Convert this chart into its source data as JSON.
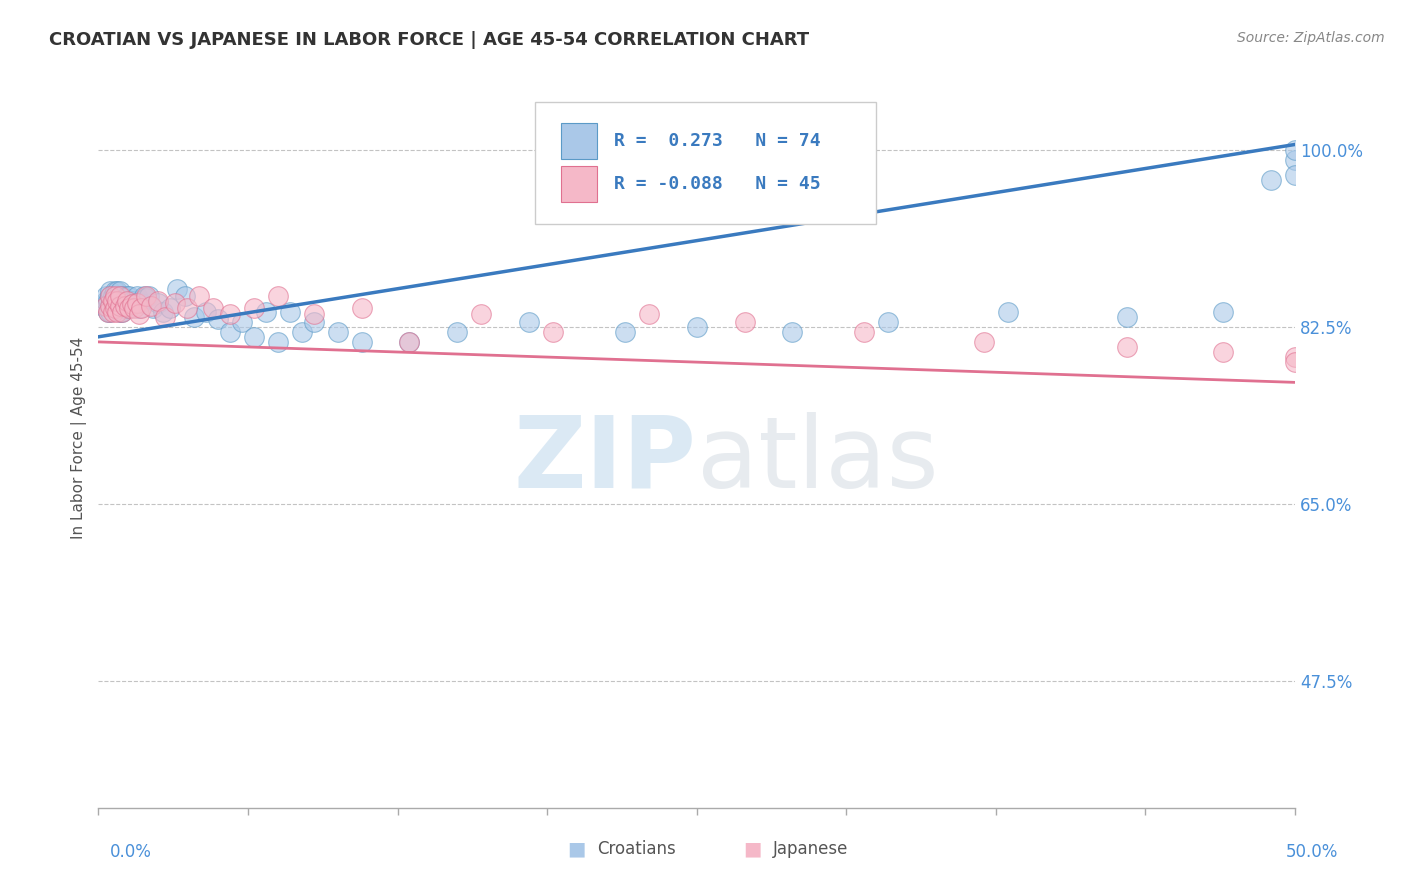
{
  "title": "CROATIAN VS JAPANESE IN LABOR FORCE | AGE 45-54 CORRELATION CHART",
  "source": "Source: ZipAtlas.com",
  "ylabel": "In Labor Force | Age 45-54",
  "ytick_labels": [
    "47.5%",
    "65.0%",
    "82.5%",
    "100.0%"
  ],
  "ytick_values": [
    0.475,
    0.65,
    0.825,
    1.0
  ],
  "xlim": [
    0.0,
    0.5
  ],
  "ylim": [
    0.35,
    1.08
  ],
  "blue_color": "#aac8e8",
  "blue_edge": "#5b9ac7",
  "pink_color": "#f5b8c8",
  "pink_edge": "#e07090",
  "blue_line_color": "#3a7abf",
  "pink_line_color": "#e07090",
  "axis_label_color": "#4a90d9",
  "watermark_color": "#cce0f5",
  "background_color": "#ffffff",
  "dashed_line_y": 1.0,
  "blue_line_x0": 0.0,
  "blue_line_y0": 0.815,
  "blue_line_x1": 0.5,
  "blue_line_y1": 1.005,
  "pink_line_x0": 0.0,
  "pink_line_y0": 0.81,
  "pink_line_x1": 0.5,
  "pink_line_y1": 0.77,
  "blue_x": [
    0.002,
    0.003,
    0.003,
    0.004,
    0.004,
    0.005,
    0.005,
    0.005,
    0.005,
    0.006,
    0.006,
    0.006,
    0.007,
    0.007,
    0.007,
    0.007,
    0.008,
    0.008,
    0.008,
    0.008,
    0.009,
    0.009,
    0.009,
    0.01,
    0.01,
    0.01,
    0.011,
    0.011,
    0.012,
    0.012,
    0.013,
    0.013,
    0.014,
    0.015,
    0.016,
    0.016,
    0.017,
    0.018,
    0.019,
    0.02,
    0.021,
    0.023,
    0.025,
    0.027,
    0.03,
    0.033,
    0.036,
    0.04,
    0.045,
    0.05,
    0.055,
    0.06,
    0.065,
    0.07,
    0.075,
    0.08,
    0.085,
    0.09,
    0.1,
    0.11,
    0.13,
    0.15,
    0.18,
    0.22,
    0.25,
    0.29,
    0.33,
    0.38,
    0.43,
    0.47,
    0.49,
    0.5,
    0.5,
    0.5
  ],
  "blue_y": [
    0.845,
    0.85,
    0.855,
    0.84,
    0.85,
    0.84,
    0.845,
    0.855,
    0.86,
    0.845,
    0.85,
    0.855,
    0.845,
    0.848,
    0.852,
    0.86,
    0.842,
    0.848,
    0.854,
    0.86,
    0.84,
    0.845,
    0.86,
    0.84,
    0.847,
    0.855,
    0.843,
    0.853,
    0.845,
    0.855,
    0.843,
    0.855,
    0.85,
    0.848,
    0.845,
    0.855,
    0.843,
    0.848,
    0.855,
    0.853,
    0.855,
    0.843,
    0.848,
    0.84,
    0.843,
    0.862,
    0.855,
    0.835,
    0.84,
    0.833,
    0.82,
    0.83,
    0.815,
    0.84,
    0.81,
    0.84,
    0.82,
    0.83,
    0.82,
    0.81,
    0.81,
    0.82,
    0.83,
    0.82,
    0.825,
    0.82,
    0.83,
    0.84,
    0.835,
    0.84,
    0.97,
    0.99,
    1.0,
    0.975
  ],
  "pink_x": [
    0.003,
    0.004,
    0.005,
    0.005,
    0.006,
    0.006,
    0.007,
    0.007,
    0.008,
    0.008,
    0.009,
    0.009,
    0.01,
    0.011,
    0.012,
    0.013,
    0.014,
    0.015,
    0.016,
    0.017,
    0.018,
    0.02,
    0.022,
    0.025,
    0.028,
    0.032,
    0.037,
    0.042,
    0.048,
    0.055,
    0.065,
    0.075,
    0.09,
    0.11,
    0.13,
    0.16,
    0.19,
    0.23,
    0.27,
    0.32,
    0.37,
    0.43,
    0.47,
    0.5,
    0.5
  ],
  "pink_y": [
    0.845,
    0.84,
    0.845,
    0.855,
    0.84,
    0.85,
    0.843,
    0.855,
    0.84,
    0.85,
    0.845,
    0.855,
    0.84,
    0.845,
    0.85,
    0.843,
    0.847,
    0.843,
    0.848,
    0.838,
    0.843,
    0.855,
    0.845,
    0.85,
    0.835,
    0.848,
    0.843,
    0.855,
    0.843,
    0.838,
    0.843,
    0.855,
    0.838,
    0.843,
    0.81,
    0.838,
    0.82,
    0.838,
    0.83,
    0.82,
    0.81,
    0.805,
    0.8,
    0.795,
    0.79
  ]
}
